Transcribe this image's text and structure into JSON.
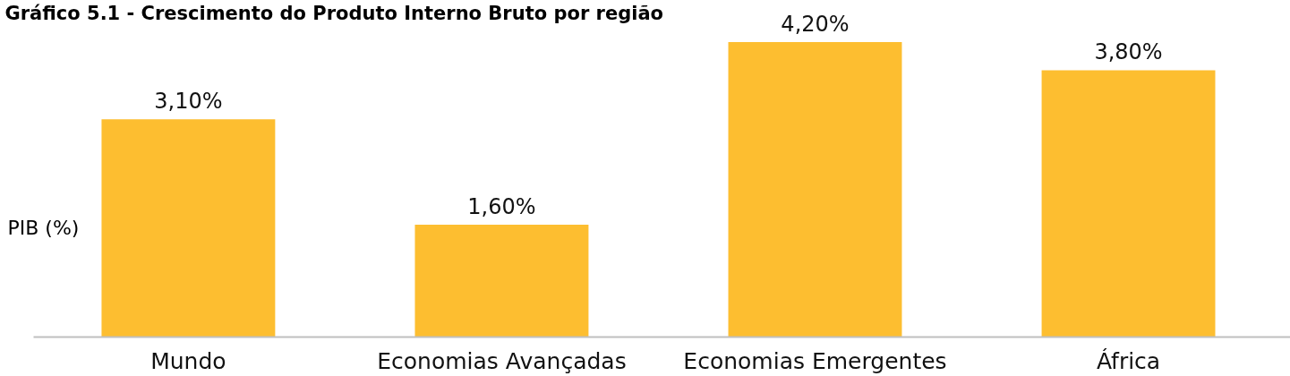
{
  "chart_data": {
    "type": "bar",
    "title": "Gráfico 5.1 - Crescimento do Produto Interno Bruto por região",
    "ylabel": "PIB (%)",
    "categories": [
      "Mundo",
      "Economias Avançadas",
      "Economias Emergentes",
      "África"
    ],
    "values": [
      3.1,
      1.6,
      4.2,
      3.8
    ],
    "value_labels": [
      "3,10%",
      "1,60%",
      "4,20%",
      "3,80%"
    ],
    "color": "#fdbe30",
    "grid": false,
    "tick_labels": "x"
  }
}
